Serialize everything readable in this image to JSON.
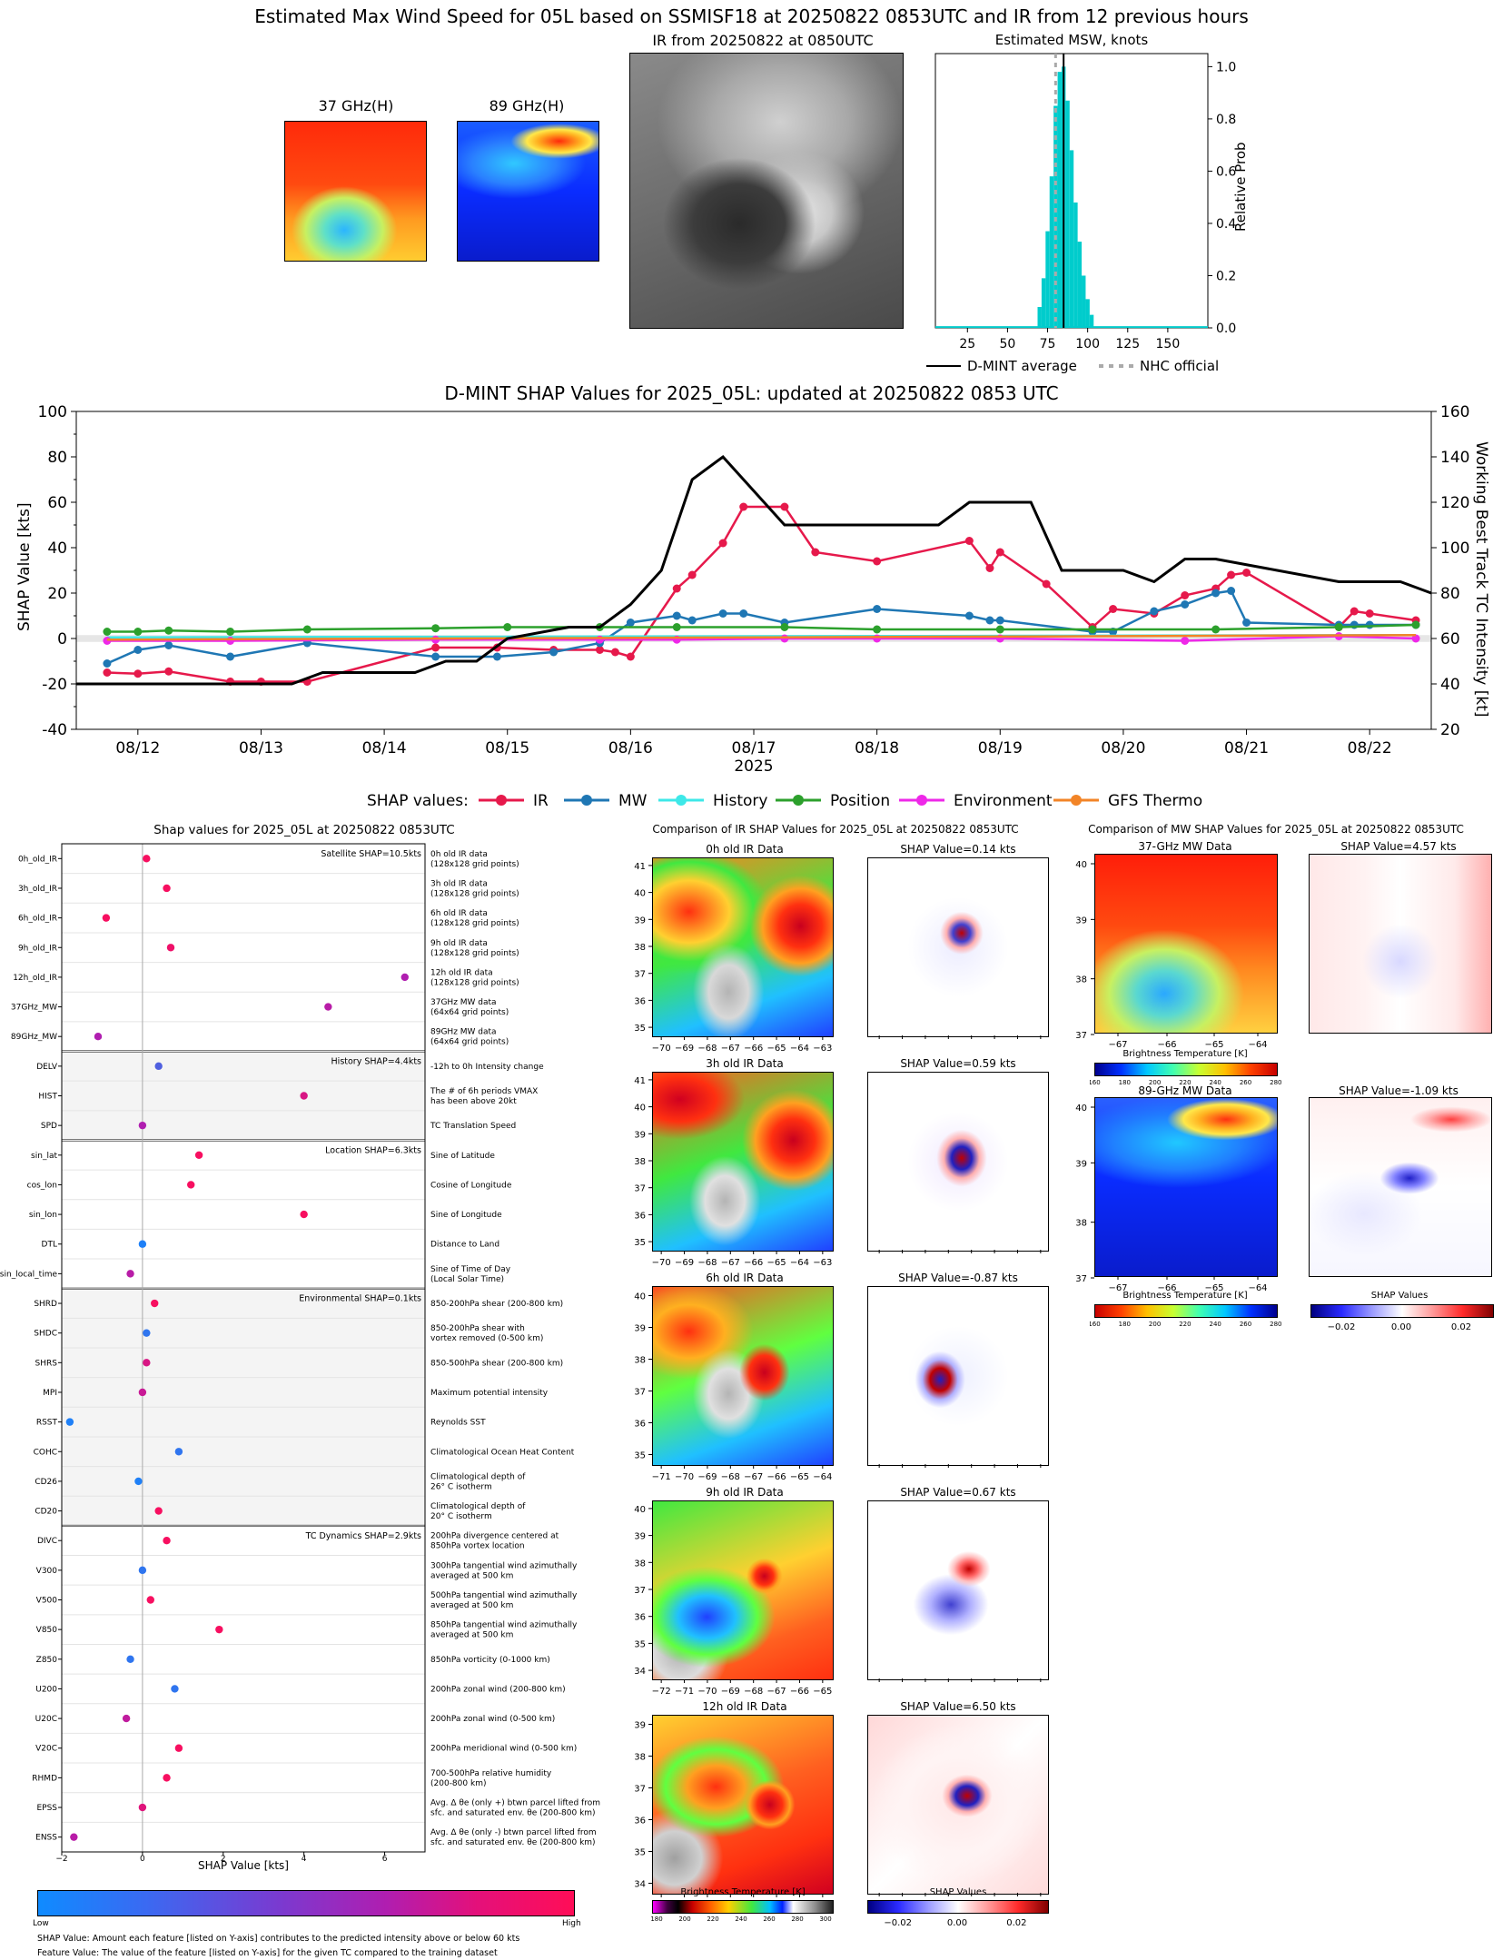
{
  "main_title": "Estimated Max Wind Speed for 05L based on SSMISF18 at 20250822 0853UTC and IR from 12 previous hours",
  "top": {
    "mw37_title": "37 GHz(H)",
    "mw89_title": "89 GHz(H)",
    "ir_title": "IR from 20250822 at 0850UTC",
    "hist_title": "Estimated MSW, knots",
    "hist_ylabel": "Relative Prob",
    "legend_avg": "D-MINT average",
    "legend_nhc": "NHC official"
  },
  "shap_ts": {
    "title": "D-MINT SHAP Values for 2025_05L: updated at 20250822 0853 UTC",
    "ylabel": "SHAP Value [kts]",
    "y2label": "Working Best Track TC Intensity [kt]",
    "xlabel": "2025",
    "legend_prefix": "SHAP values:",
    "legend_tc": "TC Intensity"
  },
  "features": {
    "title": "Shap values for 2025_05L at 20250822 0853UTC",
    "xlabel": "SHAP Value [kts]",
    "cbar_low": "Low",
    "cbar_high": "High",
    "note1": "SHAP Value: Amount each feature [listed on Y-axis] contributes to the predicted intensity above or below 60 kts",
    "note2": "Feature Value: The value of the feature [listed on Y-axis] for the given TC compared to the training dataset"
  },
  "ir_comp": {
    "title": "Comparison of IR SHAP Values for 2025_05L at 20250822 0853UTC",
    "cbar_bt": "Brightness Temperature [K]",
    "cbar_shap": "SHAP Values",
    "panels": [
      {
        "name": "0h old IR Data",
        "shap": "SHAP Value=0.14 kts",
        "ylim": [
          35,
          41
        ],
        "xlim": [
          -70,
          -63
        ]
      },
      {
        "name": "3h old IR Data",
        "shap": "SHAP Value=0.59 kts",
        "ylim": [
          35,
          41
        ],
        "xlim": [
          -70,
          -63
        ]
      },
      {
        "name": "6h old IR Data",
        "shap": "SHAP Value=-0.87 kts",
        "ylim": [
          35,
          40
        ],
        "xlim": [
          -71,
          -64
        ]
      },
      {
        "name": "9h old IR Data",
        "shap": "SHAP Value=0.67 kts",
        "ylim": [
          34,
          40
        ],
        "xlim": [
          -72,
          -65
        ]
      },
      {
        "name": "12h old IR Data",
        "shap": "SHAP Value=6.50 kts",
        "ylim": [
          34,
          39
        ],
        "xlim": [
          -73,
          -66
        ]
      }
    ]
  },
  "mw_comp": {
    "title": "Comparison of MW SHAP Values for 2025_05L at 20250822 0853UTC",
    "p37": "37-GHz MW Data",
    "p37_shap": "SHAP Value=4.57 kts",
    "p89": "89-GHz MW Data",
    "p89_shap": "SHAP Value=-1.09 kts",
    "cbar_bt": "Brightness Temperature [K]",
    "cbar_shap": "SHAP Values"
  },
  "chart_data": [
    {
      "type": "bar",
      "title": "Estimated MSW, knots",
      "xlabel": "",
      "ylabel": "Relative Prob",
      "x": [
        70,
        72.5,
        75,
        77.5,
        80,
        82.5,
        85,
        87.5,
        90,
        92.5,
        95,
        97.5,
        100,
        102.5
      ],
      "values": [
        0.08,
        0.19,
        0.37,
        0.58,
        0.85,
        0.98,
        1.0,
        0.87,
        0.68,
        0.48,
        0.33,
        0.2,
        0.11,
        0.05
      ],
      "xlim": [
        5,
        175
      ],
      "ylim": [
        0,
        1.05
      ],
      "dmint_average": 85,
      "nhc_official": 80
    },
    {
      "type": "line",
      "title": "D-MINT SHAP Values for 2025_05L: updated at 20250822 0853 UTC",
      "xlabel": "2025",
      "ylabel": "SHAP Value [kts]",
      "y2label": "Working Best Track TC Intensity [kt]",
      "x_ticks": [
        "08/12",
        "08/13",
        "08/14",
        "08/15",
        "08/16",
        "08/17",
        "08/18",
        "08/19",
        "08/20",
        "08/21",
        "08/22"
      ],
      "ylim": [
        -40,
        100
      ],
      "y2lim": [
        20,
        160
      ],
      "series": [
        {
          "name": "IR",
          "color": "#e6194b",
          "x": [
            "08/11 18",
            "08/12 00",
            "08/12 06",
            "08/12 18",
            "08/13 00",
            "08/13 09",
            "08/14 10",
            "08/14 22",
            "08/15 09",
            "08/15 18",
            "08/15 21",
            "08/16 00",
            "08/16 09",
            "08/16 12",
            "08/16 18",
            "08/16 22",
            "08/17 06",
            "08/17 12",
            "08/18 00",
            "08/18 18",
            "08/18 22",
            "08/19 00",
            "08/19 09",
            "08/19 18",
            "08/19 22",
            "08/20 06",
            "08/20 12",
            "08/20 18",
            "08/20 21",
            "08/21 00",
            "08/21 18",
            "08/21 21",
            "08/22 00",
            "08/22 09"
          ],
          "y": [
            -15,
            -15.5,
            -14.5,
            -19,
            -19,
            -19,
            -4,
            -4,
            -5,
            -5,
            -6,
            -8,
            22,
            28,
            42,
            58,
            58,
            38,
            34,
            43,
            31,
            38,
            24,
            5,
            13,
            11,
            19,
            22,
            28,
            29,
            5,
            12,
            11,
            8
          ]
        },
        {
          "name": "MW",
          "color": "#1f77b4",
          "x": [
            "08/11 18",
            "08/12 00",
            "08/12 06",
            "08/12 18",
            "08/13 09",
            "08/14 10",
            "08/14 22",
            "08/15 09",
            "08/15 18",
            "08/16 00",
            "08/16 09",
            "08/16 12",
            "08/16 18",
            "08/16 22",
            "08/17 06",
            "08/18 00",
            "08/18 18",
            "08/18 22",
            "08/19 00",
            "08/19 18",
            "08/19 22",
            "08/20 06",
            "08/20 12",
            "08/20 18",
            "08/20 21",
            "08/21 00",
            "08/21 18",
            "08/21 21",
            "08/22 00",
            "08/22 09"
          ],
          "y": [
            -11,
            -5,
            -3,
            -8,
            -2,
            -8,
            -8,
            -6,
            -2,
            7,
            10,
            8,
            11,
            11,
            7,
            13,
            10,
            8,
            8,
            3,
            3,
            12,
            15,
            20,
            21,
            7,
            6,
            6,
            6,
            6
          ]
        },
        {
          "name": "History",
          "color": "#3ee8e8",
          "x": [
            "08/11 18",
            "08/22 09"
          ],
          "y": [
            0.5,
            1.5
          ]
        },
        {
          "name": "Position",
          "color": "#2ca02c",
          "x": [
            "08/11 18",
            "08/12 00",
            "08/12 06",
            "08/12 18",
            "08/13 09",
            "08/14 10",
            "08/15 00",
            "08/15 18",
            "08/16 09",
            "08/17 06",
            "08/18 00",
            "08/19 00",
            "08/19 18",
            "08/20 18",
            "08/21 18",
            "08/22 09"
          ],
          "y": [
            3,
            3,
            3.5,
            3,
            4,
            4.5,
            5,
            5,
            5,
            5,
            4,
            4,
            4,
            4,
            5,
            6
          ]
        },
        {
          "name": "Environment",
          "color": "#ee28e8",
          "x": [
            "08/11 18",
            "08/12 18",
            "08/14 10",
            "08/15 18",
            "08/16 09",
            "08/17 06",
            "08/18 00",
            "08/19 00",
            "08/20 12",
            "08/21 18",
            "08/22 09"
          ],
          "y": [
            -1,
            -1,
            -0.5,
            -0.5,
            -0.5,
            0,
            0,
            0,
            -1,
            1,
            0
          ]
        },
        {
          "name": "GFS Thermo",
          "color": "#f28427",
          "x": [
            "08/11 18",
            "08/22 09"
          ],
          "y": [
            -0.5,
            1.5
          ]
        },
        {
          "name": "TC Intensity",
          "color": "#000000",
          "axis": "right",
          "x": [
            "08/11 12",
            "08/13 06",
            "08/13 12",
            "08/14 06",
            "08/14 12",
            "08/14 18",
            "08/15 00",
            "08/15 12",
            "08/15 18",
            "08/16 00",
            "08/16 06",
            "08/16 12",
            "08/16 18",
            "08/17 06",
            "08/17 18",
            "08/18 12",
            "08/18 18",
            "08/19 06",
            "08/19 12",
            "08/20 00",
            "08/20 06",
            "08/20 12",
            "08/20 18",
            "08/21 06",
            "08/21 18",
            "08/22 06",
            "08/22 12"
          ],
          "y": [
            40,
            40,
            45,
            45,
            50,
            50,
            60,
            65,
            65,
            75,
            90,
            130,
            140,
            110,
            110,
            110,
            120,
            120,
            90,
            90,
            85,
            95,
            95,
            90,
            85,
            85,
            80
          ]
        }
      ]
    },
    {
      "type": "scatter",
      "title": "Shap values for 2025_05L at 20250822 0853UTC",
      "xlabel": "SHAP Value [kts]",
      "xlim": [
        -2,
        7
      ],
      "x_ticks": [
        "-2",
        "0",
        "2",
        "4",
        "6"
      ],
      "groups": [
        {
          "label": "Satellite SHAP=10.5kts",
          "start": 0,
          "end": 7
        },
        {
          "label": "History SHAP=4.4kts",
          "start": 7,
          "end": 10
        },
        {
          "label": "Location SHAP=6.3kts",
          "start": 10,
          "end": 15
        },
        {
          "label": "Environmental SHAP=0.1kts",
          "start": 15,
          "end": 23
        },
        {
          "label": "TC Dynamics SHAP=2.9kts",
          "start": 23,
          "end": 34
        }
      ],
      "features": [
        {
          "name": "0h_old_IR",
          "desc": "0h old IR data\n(128x128 grid points)",
          "shap": 0.1,
          "val": 0.95
        },
        {
          "name": "3h_old_IR",
          "desc": "3h old IR data\n(128x128 grid points)",
          "shap": 0.6,
          "val": 0.95
        },
        {
          "name": "6h_old_IR",
          "desc": "6h old IR data\n(128x128 grid points)",
          "shap": -0.9,
          "val": 0.95
        },
        {
          "name": "9h_old_IR",
          "desc": "9h old IR data\n(128x128 grid points)",
          "shap": 0.7,
          "val": 0.9
        },
        {
          "name": "12h_old_IR",
          "desc": "12h old IR data\n(128x128 grid points)",
          "shap": 6.5,
          "val": 0.5
        },
        {
          "name": "37GHz_MW",
          "desc": "37GHz MW data\n(64x64 grid points)",
          "shap": 4.6,
          "val": 0.55
        },
        {
          "name": "89GHz_MW",
          "desc": "89GHz MW data\n(64x64 grid points)",
          "shap": -1.1,
          "val": 0.5
        },
        {
          "name": "DELV",
          "desc": "-12h to 0h Intensity change",
          "shap": 0.4,
          "val": 0.2
        },
        {
          "name": "HIST",
          "desc": "The # of 6h periods VMAX\nhas been above 20kt",
          "shap": 4.0,
          "val": 0.75
        },
        {
          "name": "SPD",
          "desc": "TC Translation Speed",
          "shap": 0.0,
          "val": 0.5
        },
        {
          "name": "sin_lat",
          "desc": "Sine of Latitude",
          "shap": 1.4,
          "val": 0.95
        },
        {
          "name": "cos_lon",
          "desc": "Cosine of Longitude",
          "shap": 1.2,
          "val": 0.95
        },
        {
          "name": "sin_lon",
          "desc": "Sine of Longitude",
          "shap": 4.0,
          "val": 0.95
        },
        {
          "name": "DTL",
          "desc": "Distance to Land",
          "shap": 0.0,
          "val": 0.05
        },
        {
          "name": "sin_local_time",
          "desc": "Sine of Time of Day\n(Local Solar Time)",
          "shap": -0.3,
          "val": 0.55
        },
        {
          "name": "SHRD",
          "desc": "850-200hPa shear (200-800 km)",
          "shap": 0.3,
          "val": 0.95
        },
        {
          "name": "SHDC",
          "desc": "850-200hPa shear with\nvortex removed (0-500 km)",
          "shap": 0.1,
          "val": 0.1
        },
        {
          "name": "SHRS",
          "desc": "850-500hPa shear (200-800 km)",
          "shap": 0.1,
          "val": 0.75
        },
        {
          "name": "MPI",
          "desc": "Maximum potential intensity",
          "shap": 0.0,
          "val": 0.65
        },
        {
          "name": "RSST",
          "desc": "Reynolds SST",
          "shap": -1.8,
          "val": 0.05
        },
        {
          "name": "COHC",
          "desc": "Climatological Ocean Heat Content",
          "shap": 0.9,
          "val": 0.1
        },
        {
          "name": "CD26",
          "desc": "Climatological depth of\n26° C isotherm",
          "shap": -0.1,
          "val": 0.05
        },
        {
          "name": "CD20",
          "desc": "Climatological depth of\n20° C isotherm",
          "shap": 0.4,
          "val": 0.95
        },
        {
          "name": "DIVC",
          "desc": "200hPa divergence centered at\n850hPa vortex location",
          "shap": 0.6,
          "val": 0.95
        },
        {
          "name": "V300",
          "desc": "300hPa tangential wind azimuthally\naveraged at 500 km",
          "shap": 0.0,
          "val": 0.1
        },
        {
          "name": "V500",
          "desc": "500hPa tangential wind azimuthally\naveraged at 500 km",
          "shap": 0.2,
          "val": 0.95
        },
        {
          "name": "V850",
          "desc": "850hPa tangential wind azimuthally\naveraged at 500 km",
          "shap": 1.9,
          "val": 0.95
        },
        {
          "name": "Z850",
          "desc": "850hPa vorticity (0-1000 km)",
          "shap": -0.3,
          "val": 0.1
        },
        {
          "name": "U200",
          "desc": "200hPa zonal wind (200-800 km)",
          "shap": 0.8,
          "val": 0.1
        },
        {
          "name": "U20C",
          "desc": "200hPa zonal wind (0-500 km)",
          "shap": -0.4,
          "val": 0.6
        },
        {
          "name": "V20C",
          "desc": "200hPa meridional wind (0-500 km)",
          "shap": 0.9,
          "val": 0.95
        },
        {
          "name": "RHMD",
          "desc": "700-500hPa relative humidity\n(200-800 km)",
          "shap": 0.6,
          "val": 0.95
        },
        {
          "name": "EPSS",
          "desc": "Avg. Δ θe (only +) btwn parcel lifted from\nsfc. and saturated env. θe (200-800 km)",
          "shap": 0.0,
          "val": 0.8
        },
        {
          "name": "ENSS",
          "desc": "Avg. Δ θe (only -) btwn parcel lifted from\nsfc. and saturated env. θe (200-800 km)",
          "shap": -1.7,
          "val": 0.55
        }
      ]
    }
  ]
}
